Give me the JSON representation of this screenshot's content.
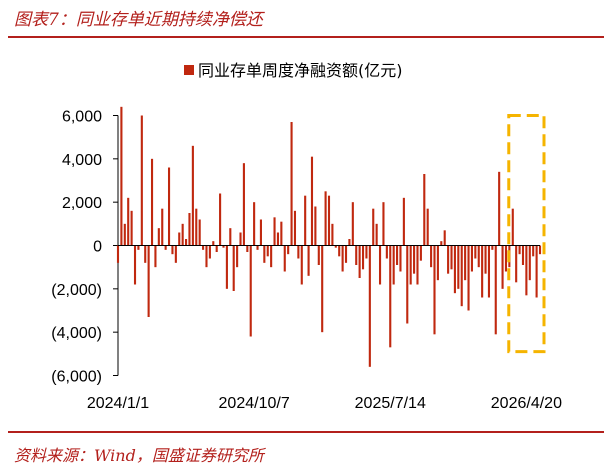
{
  "figure": {
    "title": "图表7：同业存单近期持续净偿还",
    "source": "资料来源：Wind，国盛证券研究所"
  },
  "colors": {
    "accent": "#b3201c",
    "bar": "#c0280f",
    "highlight": "#f5b400"
  },
  "chart_data": {
    "type": "bar",
    "legend_position": "top-center",
    "grid": false,
    "x_axis": {
      "type": "date",
      "tick_labels": [
        "2024/1/1",
        "2024/10/7",
        "2025/7/14",
        "2026/4/20"
      ],
      "range": [
        "2024-01-01",
        "2026-05-18"
      ]
    },
    "y_axis": {
      "ylim": [
        -6000,
        6000
      ],
      "ticks": [
        6000,
        4000,
        2000,
        0,
        -2000,
        -4000,
        -6000
      ],
      "tick_labels": [
        "6,000",
        "4,000",
        "2,000",
        "0",
        "(2,000)",
        "(4,000)",
        "(6,000)"
      ]
    },
    "series": [
      {
        "name": "同业存单周度净融资额(亿元)",
        "x": [
          "2024-01-01",
          "2024-01-08",
          "2024-01-15",
          "2024-01-22",
          "2024-01-29",
          "2024-02-05",
          "2024-02-12",
          "2024-02-19",
          "2024-02-26",
          "2024-03-04",
          "2024-03-11",
          "2024-03-18",
          "2024-03-25",
          "2024-04-01",
          "2024-04-08",
          "2024-04-15",
          "2024-04-22",
          "2024-04-29",
          "2024-05-06",
          "2024-05-13",
          "2024-05-20",
          "2024-05-27",
          "2024-06-03",
          "2024-06-10",
          "2024-06-17",
          "2024-06-24",
          "2024-07-01",
          "2024-07-08",
          "2024-07-15",
          "2024-07-22",
          "2024-07-29",
          "2024-08-05",
          "2024-08-12",
          "2024-08-19",
          "2024-08-26",
          "2024-09-02",
          "2024-09-09",
          "2024-09-16",
          "2024-09-23",
          "2024-09-30",
          "2024-10-07",
          "2024-10-14",
          "2024-10-21",
          "2024-10-28",
          "2024-11-04",
          "2024-11-11",
          "2024-11-18",
          "2024-11-25",
          "2024-12-02",
          "2024-12-09",
          "2024-12-16",
          "2024-12-23",
          "2024-12-30",
          "2025-01-06",
          "2025-01-13",
          "2025-01-20",
          "2025-01-27",
          "2025-02-03",
          "2025-02-10",
          "2025-02-17",
          "2025-02-24",
          "2025-03-03",
          "2025-03-10",
          "2025-03-17",
          "2025-03-24",
          "2025-03-31",
          "2025-04-07",
          "2025-04-14",
          "2025-04-21",
          "2025-04-28",
          "2025-05-05",
          "2025-05-12",
          "2025-05-19",
          "2025-05-26",
          "2025-06-02",
          "2025-06-09",
          "2025-06-16",
          "2025-06-23",
          "2025-06-30",
          "2025-07-07",
          "2025-07-14",
          "2025-07-21",
          "2025-07-28",
          "2025-08-04",
          "2025-08-11",
          "2025-08-18",
          "2025-08-25",
          "2025-09-01",
          "2025-09-08",
          "2025-09-15",
          "2025-09-22",
          "2025-09-29",
          "2025-10-06",
          "2025-10-13",
          "2025-10-20",
          "2025-10-27",
          "2025-11-03",
          "2025-11-10",
          "2025-11-17",
          "2025-11-24",
          "2025-12-01",
          "2025-12-08",
          "2025-12-15",
          "2025-12-22",
          "2025-12-29",
          "2026-01-05",
          "2026-01-12",
          "2026-01-19",
          "2026-01-26",
          "2026-02-02",
          "2026-02-09",
          "2026-02-16",
          "2026-02-23",
          "2026-03-02",
          "2026-03-09",
          "2026-03-16",
          "2026-03-23",
          "2026-03-30",
          "2026-04-06",
          "2026-04-13",
          "2026-04-20",
          "2026-04-27",
          "2026-05-04",
          "2026-05-11",
          "2026-05-18"
        ],
        "values": [
          -800,
          6400,
          1000,
          2200,
          1600,
          -1800,
          -200,
          6000,
          -800,
          -3300,
          4000,
          -1000,
          800,
          1700,
          -200,
          3600,
          -400,
          -800,
          600,
          1000,
          300,
          1500,
          4600,
          1700,
          1200,
          -200,
          -1000,
          -600,
          200,
          -300,
          2400,
          -100,
          -2000,
          800,
          -2100,
          -1000,
          600,
          3800,
          -300,
          -4200,
          2000,
          -200,
          1200,
          -800,
          -500,
          -1000,
          1300,
          600,
          1100,
          -1200,
          -400,
          5700,
          1600,
          -600,
          -1800,
          2300,
          -1400,
          4100,
          1800,
          -900,
          -4000,
          2500,
          2300,
          1000,
          -100,
          -500,
          -1200,
          -800,
          300,
          2000,
          -900,
          -1500,
          -1100,
          -600,
          -5600,
          1700,
          1000,
          -1800,
          2000,
          -600,
          -4700,
          -1800,
          -900,
          -1200,
          2200,
          -3600,
          -1800,
          -1300,
          -1800,
          -700,
          3300,
          1700,
          -1000,
          -4100,
          -1600,
          200,
          700,
          -1300,
          -1100,
          -2200,
          -2000,
          -2800,
          -1600,
          -3000,
          -1200,
          -600,
          -1000,
          -2400,
          -1300,
          -2400,
          -200,
          -4100,
          3400,
          -2000,
          -1200,
          -1000,
          1700,
          -1700,
          -400,
          -900,
          -2300,
          -1600,
          -500,
          -2400,
          -400
        ]
      }
    ],
    "annotations": [
      {
        "type": "highlight-box",
        "x_range": [
          "2026-03-23",
          "2026-05-18"
        ],
        "y_range": [
          -4900,
          6000
        ]
      }
    ]
  }
}
